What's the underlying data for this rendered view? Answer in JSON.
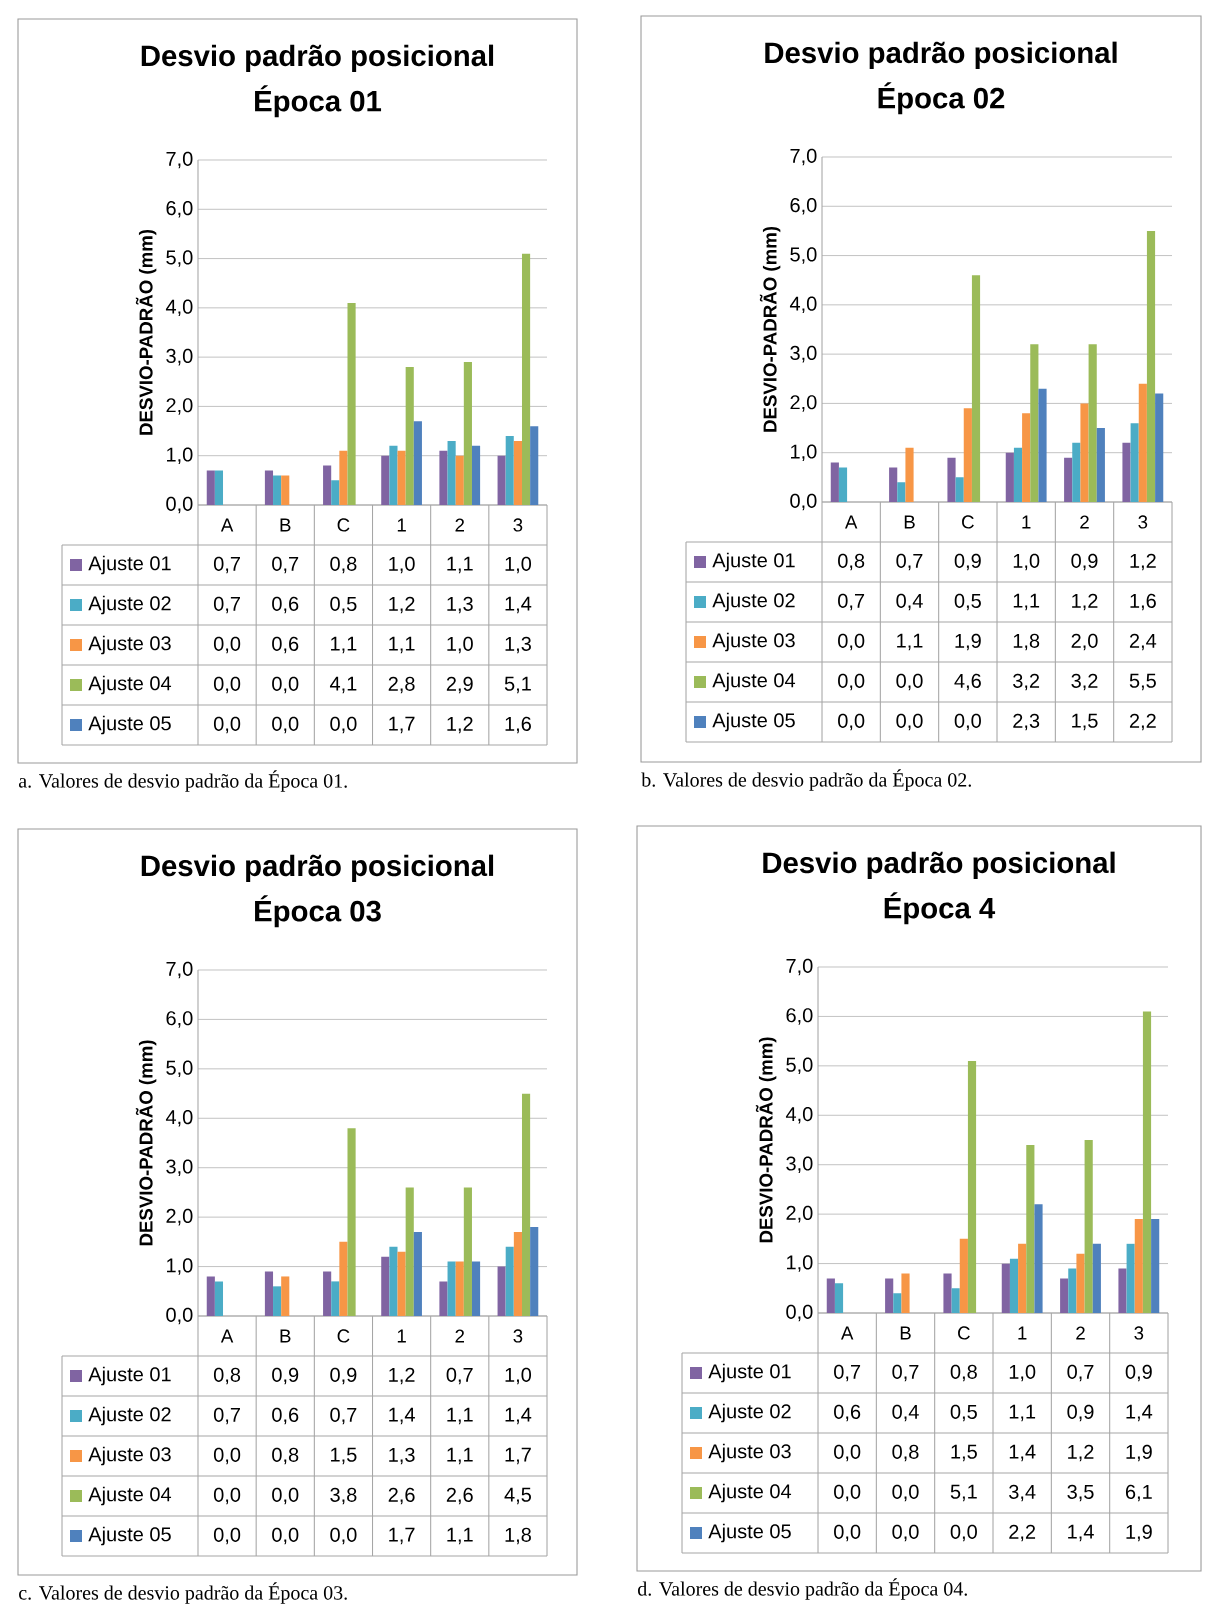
{
  "chart_data": [
    {
      "type": "bar",
      "title": "Desvio padrão posicional",
      "subtitle": "Época 01",
      "ylabel": "DESVIO-PADRÃO (mm)",
      "categories": [
        "A",
        "B",
        "C",
        "1",
        "2",
        "3"
      ],
      "series": [
        {
          "name": "Ajuste 01",
          "color": "#8064a2",
          "values": [
            0.7,
            0.7,
            0.8,
            1.0,
            1.1,
            1.0
          ],
          "value_labels": [
            "0,7",
            "0,7",
            "0,8",
            "1,0",
            "1,1",
            "1,0"
          ]
        },
        {
          "name": "Ajuste 02",
          "color": "#4bacc6",
          "values": [
            0.7,
            0.6,
            0.5,
            1.2,
            1.3,
            1.4
          ],
          "value_labels": [
            "0,7",
            "0,6",
            "0,5",
            "1,2",
            "1,3",
            "1,4"
          ]
        },
        {
          "name": "Ajuste 03",
          "color": "#f79646",
          "values": [
            0.0,
            0.6,
            1.1,
            1.1,
            1.0,
            1.3
          ],
          "value_labels": [
            "0,0",
            "0,6",
            "1,1",
            "1,1",
            "1,0",
            "1,3"
          ]
        },
        {
          "name": "Ajuste 04",
          "color": "#9bbb59",
          "values": [
            0.0,
            0.0,
            4.1,
            2.8,
            2.9,
            5.1
          ],
          "value_labels": [
            "0,0",
            "0,0",
            "4,1",
            "2,8",
            "2,9",
            "5,1"
          ]
        },
        {
          "name": "Ajuste 05",
          "color": "#4f81bd",
          "values": [
            0.0,
            0.0,
            0.0,
            1.7,
            1.2,
            1.6
          ],
          "value_labels": [
            "0,0",
            "0,0",
            "0,0",
            "1,7",
            "1,2",
            "1,6"
          ]
        }
      ],
      "ylim": [
        0,
        7
      ],
      "yticks": [
        {
          "value": 0,
          "label": "0,0"
        },
        {
          "value": 1,
          "label": "1,0"
        },
        {
          "value": 2,
          "label": "2,0"
        },
        {
          "value": 3,
          "label": "3,0"
        },
        {
          "value": 4,
          "label": "4,0"
        },
        {
          "value": 5,
          "label": "5,0"
        },
        {
          "value": 6,
          "label": "6,0"
        },
        {
          "value": 7,
          "label": "7,0"
        }
      ],
      "grid": "y",
      "legend": "bottom",
      "annotations": [
        "a. Valores de desvio padrão da Época 01."
      ]
    },
    {
      "type": "bar",
      "title": "Desvio padrão posicional",
      "subtitle": "Época 02",
      "ylabel": "DESVIO-PADRÃO (mm)",
      "categories": [
        "A",
        "B",
        "C",
        "1",
        "2",
        "3"
      ],
      "series": [
        {
          "name": "Ajuste 01",
          "color": "#8064a2",
          "values": [
            0.8,
            0.7,
            0.9,
            1.0,
            0.9,
            1.2
          ],
          "value_labels": [
            "0,8",
            "0,7",
            "0,9",
            "1,0",
            "0,9",
            "1,2"
          ]
        },
        {
          "name": "Ajuste 02",
          "color": "#4bacc6",
          "values": [
            0.7,
            0.4,
            0.5,
            1.1,
            1.2,
            1.6
          ],
          "value_labels": [
            "0,7",
            "0,4",
            "0,5",
            "1,1",
            "1,2",
            "1,6"
          ]
        },
        {
          "name": "Ajuste 03",
          "color": "#f79646",
          "values": [
            0.0,
            1.1,
            1.9,
            1.8,
            2.0,
            2.4
          ],
          "value_labels": [
            "0,0",
            "1,1",
            "1,9",
            "1,8",
            "2,0",
            "2,4"
          ]
        },
        {
          "name": "Ajuste 04",
          "color": "#9bbb59",
          "values": [
            0.0,
            0.0,
            4.6,
            3.2,
            3.2,
            5.5
          ],
          "value_labels": [
            "0,0",
            "0,0",
            "4,6",
            "3,2",
            "3,2",
            "5,5"
          ]
        },
        {
          "name": "Ajuste 05",
          "color": "#4f81bd",
          "values": [
            0.0,
            0.0,
            0.0,
            2.3,
            1.5,
            2.2
          ],
          "value_labels": [
            "0,0",
            "0,0",
            "0,0",
            "2,3",
            "1,5",
            "2,2"
          ]
        }
      ],
      "ylim": [
        0,
        7
      ],
      "yticks": [
        {
          "value": 0,
          "label": "0,0"
        },
        {
          "value": 1,
          "label": "1,0"
        },
        {
          "value": 2,
          "label": "2,0"
        },
        {
          "value": 3,
          "label": "3,0"
        },
        {
          "value": 4,
          "label": "4,0"
        },
        {
          "value": 5,
          "label": "5,0"
        },
        {
          "value": 6,
          "label": "6,0"
        },
        {
          "value": 7,
          "label": "7,0"
        }
      ],
      "grid": "y",
      "legend": "bottom",
      "annotations": [
        "b. Valores de desvio padrão da Época 02."
      ]
    },
    {
      "type": "bar",
      "title": "Desvio padrão posicional",
      "subtitle": "Época 03",
      "ylabel": "DESVIO-PADRÃO (mm)",
      "categories": [
        "A",
        "B",
        "C",
        "1",
        "2",
        "3"
      ],
      "series": [
        {
          "name": "Ajuste 01",
          "color": "#8064a2",
          "values": [
            0.8,
            0.9,
            0.9,
            1.2,
            0.7,
            1.0
          ],
          "value_labels": [
            "0,8",
            "0,9",
            "0,9",
            "1,2",
            "0,7",
            "1,0"
          ]
        },
        {
          "name": "Ajuste 02",
          "color": "#4bacc6",
          "values": [
            0.7,
            0.6,
            0.7,
            1.4,
            1.1,
            1.4
          ],
          "value_labels": [
            "0,7",
            "0,6",
            "0,7",
            "1,4",
            "1,1",
            "1,4"
          ]
        },
        {
          "name": "Ajuste 03",
          "color": "#f79646",
          "values": [
            0.0,
            0.8,
            1.5,
            1.3,
            1.1,
            1.7
          ],
          "value_labels": [
            "0,0",
            "0,8",
            "1,5",
            "1,3",
            "1,1",
            "1,7"
          ]
        },
        {
          "name": "Ajuste 04",
          "color": "#9bbb59",
          "values": [
            0.0,
            0.0,
            3.8,
            2.6,
            2.6,
            4.5
          ],
          "value_labels": [
            "0,0",
            "0,0",
            "3,8",
            "2,6",
            "2,6",
            "4,5"
          ]
        },
        {
          "name": "Ajuste 05",
          "color": "#4f81bd",
          "values": [
            0.0,
            0.0,
            0.0,
            1.7,
            1.1,
            1.8
          ],
          "value_labels": [
            "0,0",
            "0,0",
            "0,0",
            "1,7",
            "1,1",
            "1,8"
          ]
        }
      ],
      "ylim": [
        0,
        7
      ],
      "yticks": [
        {
          "value": 0,
          "label": "0,0"
        },
        {
          "value": 1,
          "label": "1,0"
        },
        {
          "value": 2,
          "label": "2,0"
        },
        {
          "value": 3,
          "label": "3,0"
        },
        {
          "value": 4,
          "label": "4,0"
        },
        {
          "value": 5,
          "label": "5,0"
        },
        {
          "value": 6,
          "label": "6,0"
        },
        {
          "value": 7,
          "label": "7,0"
        }
      ],
      "grid": "y",
      "legend": "bottom",
      "annotations": [
        "c.  Valores de desvio padrão da Época 03."
      ]
    },
    {
      "type": "bar",
      "title": "Desvio padrão posicional",
      "subtitle": "Época 4",
      "ylabel": "DESVIO-PADRÃO (mm)",
      "categories": [
        "A",
        "B",
        "C",
        "1",
        "2",
        "3"
      ],
      "series": [
        {
          "name": "Ajuste 01",
          "color": "#8064a2",
          "values": [
            0.7,
            0.7,
            0.8,
            1.0,
            0.7,
            0.9
          ],
          "value_labels": [
            "0,7",
            "0,7",
            "0,8",
            "1,0",
            "0,7",
            "0,9"
          ]
        },
        {
          "name": "Ajuste 02",
          "color": "#4bacc6",
          "values": [
            0.6,
            0.4,
            0.5,
            1.1,
            0.9,
            1.4
          ],
          "value_labels": [
            "0,6",
            "0,4",
            "0,5",
            "1,1",
            "0,9",
            "1,4"
          ]
        },
        {
          "name": "Ajuste 03",
          "color": "#f79646",
          "values": [
            0.0,
            0.8,
            1.5,
            1.4,
            1.2,
            1.9
          ],
          "value_labels": [
            "0,0",
            "0,8",
            "1,5",
            "1,4",
            "1,2",
            "1,9"
          ]
        },
        {
          "name": "Ajuste 04",
          "color": "#9bbb59",
          "values": [
            0.0,
            0.0,
            5.1,
            3.4,
            3.5,
            6.1
          ],
          "value_labels": [
            "0,0",
            "0,0",
            "5,1",
            "3,4",
            "3,5",
            "6,1"
          ]
        },
        {
          "name": "Ajuste 05",
          "color": "#4f81bd",
          "values": [
            0.0,
            0.0,
            0.0,
            2.2,
            1.4,
            1.9
          ],
          "value_labels": [
            "0,0",
            "0,0",
            "0,0",
            "2,2",
            "1,4",
            "1,9"
          ]
        }
      ],
      "ylim": [
        0,
        7
      ],
      "yticks": [
        {
          "value": 0,
          "label": "0,0"
        },
        {
          "value": 1,
          "label": "1,0"
        },
        {
          "value": 2,
          "label": "2,0"
        },
        {
          "value": 3,
          "label": "3,0"
        },
        {
          "value": 4,
          "label": "4,0"
        },
        {
          "value": 5,
          "label": "5,0"
        },
        {
          "value": 6,
          "label": "6,0"
        },
        {
          "value": 7,
          "label": "7,0"
        }
      ],
      "grid": "y",
      "legend": "bottom",
      "annotations": [
        "d. Valores de desvio padrão da Época 04."
      ]
    }
  ]
}
